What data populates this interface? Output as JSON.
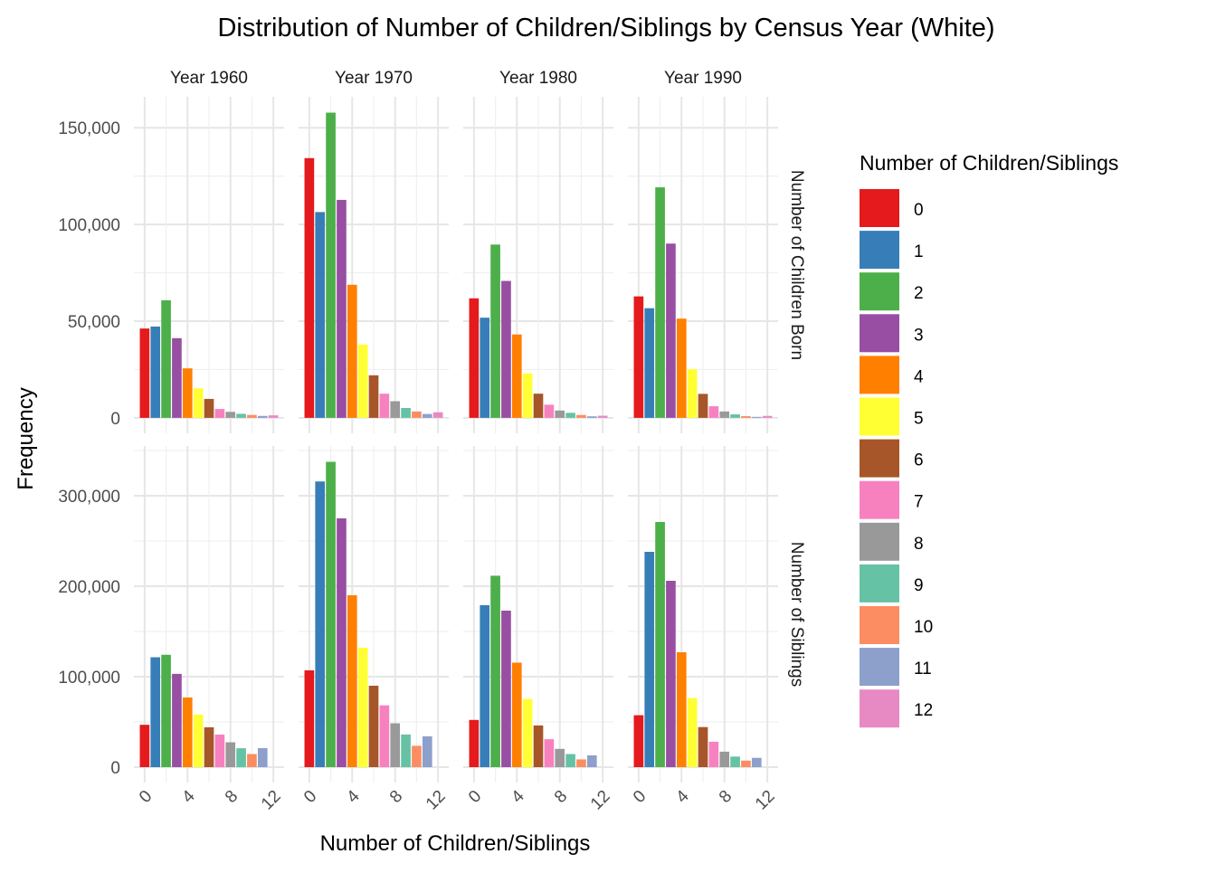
{
  "chart_data": {
    "type": "bar",
    "title": "Distribution of Number of Children/Siblings by Census Year (White)",
    "xlabel": "Number of Children/Siblings",
    "ylabel": "Frequency",
    "x_ticks": [
      0,
      4,
      8,
      12
    ],
    "x_range": [
      -1,
      13
    ],
    "columns": [
      "Year 1960",
      "Year 1970",
      "Year 1980",
      "Year 1990"
    ],
    "rows": [
      {
        "label": "Number of Children Born",
        "ylim": [
          -8000,
          166000
        ],
        "y_ticks": [
          0,
          50000,
          100000,
          150000
        ],
        "y_tick_labels": [
          "0",
          "50,000",
          "100,000",
          "150,000"
        ],
        "panels": [
          [
            46200,
            47200,
            60800,
            41200,
            25600,
            15300,
            9800,
            4600,
            3100,
            2100,
            1500,
            1000,
            1300
          ],
          [
            134300,
            106400,
            157800,
            112700,
            68800,
            37900,
            22000,
            12500,
            8600,
            5100,
            3300,
            2000,
            2900
          ],
          [
            61800,
            51800,
            89600,
            70800,
            43100,
            23000,
            12500,
            6800,
            3800,
            2600,
            1500,
            800,
            1100
          ],
          [
            62800,
            56700,
            119200,
            90100,
            51300,
            25200,
            12400,
            6000,
            3300,
            1800,
            900,
            500,
            1000
          ]
        ]
      },
      {
        "label": "Number of Siblings",
        "ylim": [
          -17000,
          355000
        ],
        "y_ticks": [
          0,
          100000,
          200000,
          300000
        ],
        "y_tick_labels": [
          "0",
          "100,000",
          "200,000",
          "300,000"
        ],
        "panels": [
          [
            46800,
            121500,
            124200,
            103100,
            77000,
            58100,
            44100,
            36000,
            27500,
            20900,
            14500,
            21000,
            null
          ],
          [
            107000,
            315800,
            337500,
            275000,
            190000,
            132000,
            90000,
            68300,
            48500,
            36100,
            23600,
            34100,
            null
          ],
          [
            52200,
            179000,
            211600,
            173000,
            115500,
            75300,
            46100,
            30900,
            20200,
            14500,
            8600,
            13000,
            null
          ],
          [
            57400,
            238000,
            271000,
            206000,
            127000,
            76300,
            44300,
            28100,
            17100,
            11700,
            7200,
            10300,
            null
          ]
        ]
      }
    ],
    "legend": {
      "title": "Number of Children/Siblings",
      "placement": "right",
      "labels": [
        "0",
        "1",
        "2",
        "3",
        "4",
        "5",
        "6",
        "7",
        "8",
        "9",
        "10",
        "11",
        "12"
      ],
      "colors": [
        "#E41A1C",
        "#377EB8",
        "#4DAF4A",
        "#984EA3",
        "#FF7F00",
        "#FFFF33",
        "#A65628",
        "#F781BF",
        "#999999",
        "#66C2A5",
        "#FC8D62",
        "#8DA0CB",
        "#E78AC3"
      ]
    },
    "grid": true
  }
}
